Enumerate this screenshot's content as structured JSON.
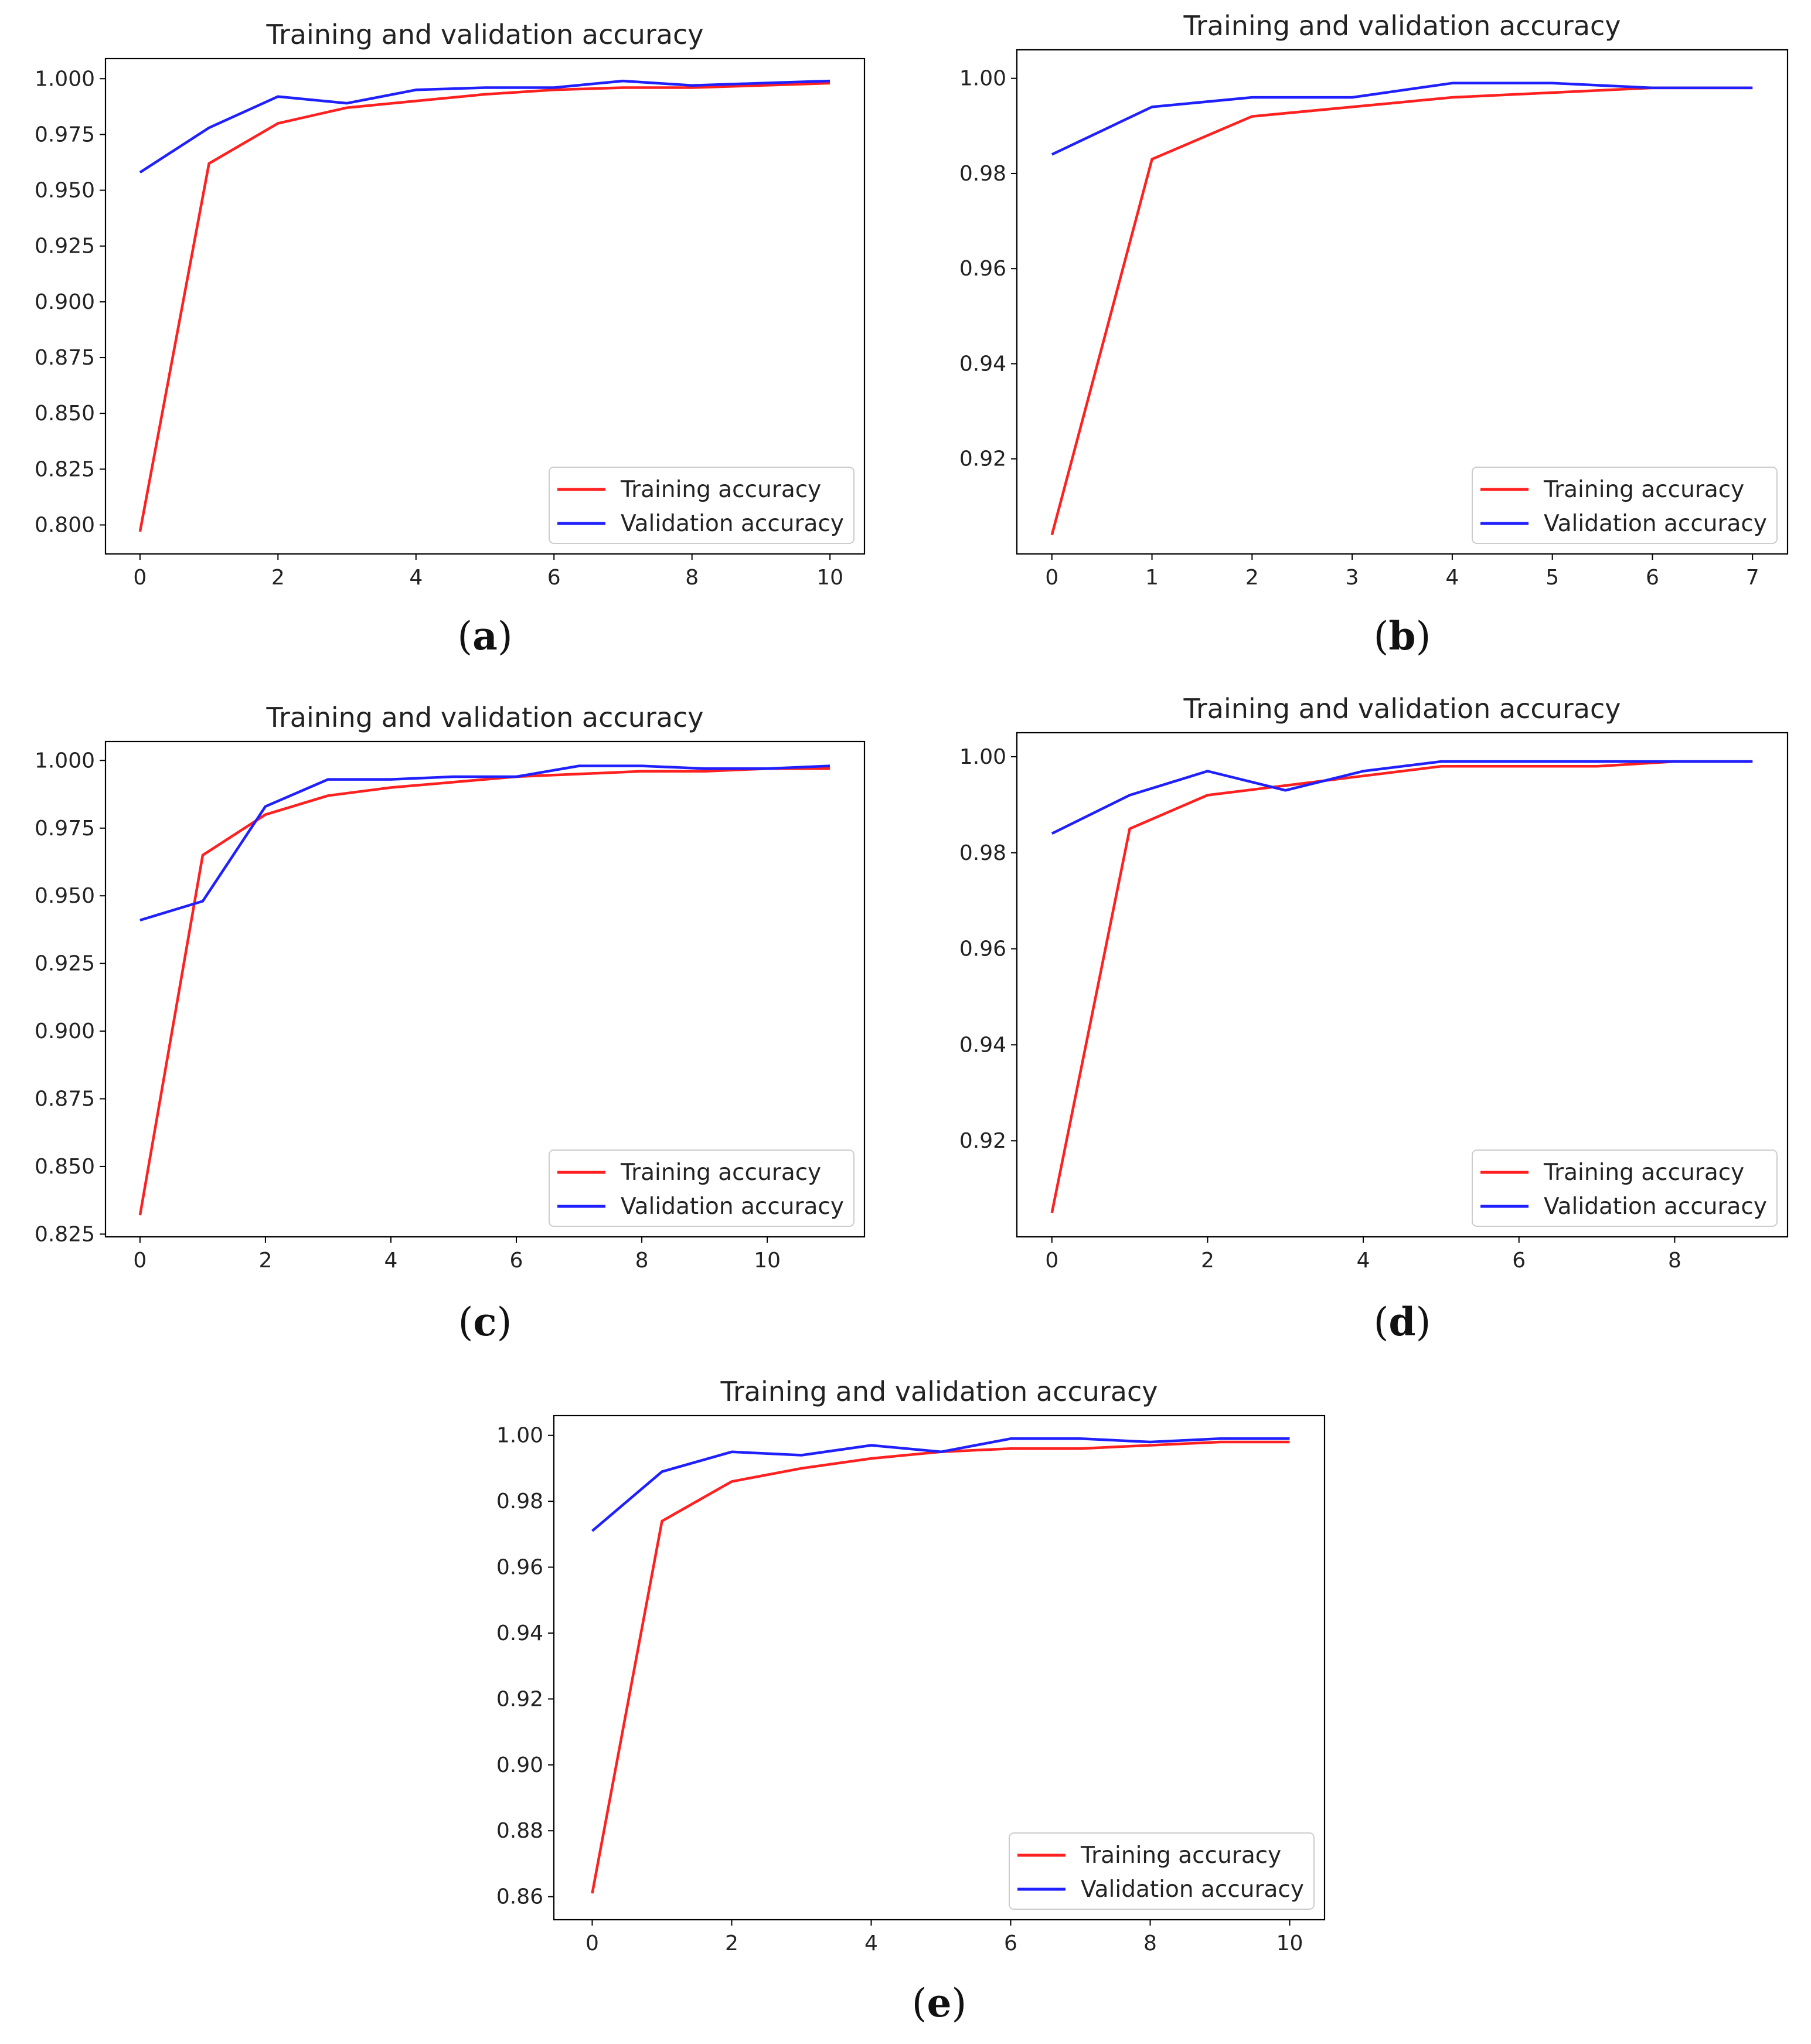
{
  "colors": {
    "training": "#ff2020",
    "validation": "#2020ff",
    "axis": "#000000"
  },
  "chart_data": [
    {
      "type": "line",
      "id": "a",
      "caption": "a",
      "title": "Training and validation accuracy",
      "xlabel": "",
      "ylabel": "",
      "xlim": [
        -0.5,
        10.5
      ],
      "ylim": [
        0.787,
        1.009
      ],
      "xticks": [
        0,
        2,
        4,
        6,
        8,
        10
      ],
      "xtick_labels": [
        "0",
        "2",
        "4",
        "6",
        "8",
        "10"
      ],
      "yticks": [
        0.8,
        0.825,
        0.85,
        0.875,
        0.9,
        0.925,
        0.95,
        0.975,
        1.0
      ],
      "ytick_labels": [
        "0.800",
        "0.825",
        "0.850",
        "0.875",
        "0.900",
        "0.925",
        "0.950",
        "0.975",
        "1.000"
      ],
      "legend_position": "lower-right",
      "x": [
        0,
        1,
        2,
        3,
        4,
        5,
        6,
        7,
        8,
        9,
        10
      ],
      "series": [
        {
          "name": "Training accuracy",
          "color_key": "training",
          "values": [
            0.797,
            0.962,
            0.98,
            0.987,
            0.99,
            0.993,
            0.995,
            0.996,
            0.996,
            0.997,
            0.998
          ]
        },
        {
          "name": "Validation accuracy",
          "color_key": "validation",
          "values": [
            0.958,
            0.978,
            0.992,
            0.989,
            0.995,
            0.996,
            0.996,
            0.999,
            0.997,
            0.998,
            0.999
          ]
        }
      ]
    },
    {
      "type": "line",
      "id": "b",
      "caption": "b",
      "title": "Training and validation accuracy",
      "xlabel": "",
      "ylabel": "",
      "xlim": [
        -0.35,
        7.35
      ],
      "ylim": [
        0.9,
        1.006
      ],
      "xticks": [
        0,
        1,
        2,
        3,
        4,
        5,
        6,
        7
      ],
      "xtick_labels": [
        "0",
        "1",
        "2",
        "3",
        "4",
        "5",
        "6",
        "7"
      ],
      "yticks": [
        0.92,
        0.94,
        0.96,
        0.98,
        1.0
      ],
      "ytick_labels": [
        "0.92",
        "0.94",
        "0.96",
        "0.98",
        "1.00"
      ],
      "legend_position": "lower-right",
      "x": [
        0,
        1,
        2,
        3,
        4,
        5,
        6,
        7
      ],
      "series": [
        {
          "name": "Training accuracy",
          "color_key": "training",
          "values": [
            0.904,
            0.983,
            0.992,
            0.994,
            0.996,
            0.997,
            0.998,
            0.998
          ]
        },
        {
          "name": "Validation accuracy",
          "color_key": "validation",
          "values": [
            0.984,
            0.994,
            0.996,
            0.996,
            0.999,
            0.999,
            0.998,
            0.998
          ]
        }
      ]
    },
    {
      "type": "line",
      "id": "c",
      "caption": "c",
      "title": "Training and validation accuracy",
      "xlabel": "",
      "ylabel": "",
      "xlim": [
        -0.55,
        11.55
      ],
      "ylim": [
        0.824,
        1.007
      ],
      "xticks": [
        0,
        2,
        4,
        6,
        8,
        10
      ],
      "xtick_labels": [
        "0",
        "2",
        "4",
        "6",
        "8",
        "10"
      ],
      "yticks": [
        0.825,
        0.85,
        0.875,
        0.9,
        0.925,
        0.95,
        0.975,
        1.0
      ],
      "ytick_labels": [
        "0.825",
        "0.850",
        "0.875",
        "0.900",
        "0.925",
        "0.950",
        "0.975",
        "1.000"
      ],
      "legend_position": "lower-right",
      "x": [
        0,
        1,
        2,
        3,
        4,
        5,
        6,
        7,
        8,
        9,
        10,
        11
      ],
      "series": [
        {
          "name": "Training accuracy",
          "color_key": "training",
          "values": [
            0.832,
            0.965,
            0.98,
            0.987,
            0.99,
            0.992,
            0.994,
            0.995,
            0.996,
            0.996,
            0.997,
            0.997
          ]
        },
        {
          "name": "Validation accuracy",
          "color_key": "validation",
          "values": [
            0.941,
            0.948,
            0.983,
            0.993,
            0.993,
            0.994,
            0.994,
            0.998,
            0.998,
            0.997,
            0.997,
            0.998
          ]
        }
      ]
    },
    {
      "type": "line",
      "id": "d",
      "caption": "d",
      "title": "Training and validation accuracy",
      "xlabel": "",
      "ylabel": "",
      "xlim": [
        -0.45,
        9.45
      ],
      "ylim": [
        0.9,
        1.005
      ],
      "xticks": [
        0,
        2,
        4,
        6,
        8
      ],
      "xtick_labels": [
        "0",
        "2",
        "4",
        "6",
        "8"
      ],
      "yticks": [
        0.92,
        0.94,
        0.96,
        0.98,
        1.0
      ],
      "ytick_labels": [
        "0.92",
        "0.94",
        "0.96",
        "0.98",
        "1.00"
      ],
      "legend_position": "lower-right",
      "x": [
        0,
        1,
        2,
        3,
        4,
        5,
        6,
        7,
        8,
        9
      ],
      "series": [
        {
          "name": "Training accuracy",
          "color_key": "training",
          "values": [
            0.905,
            0.985,
            0.992,
            0.994,
            0.996,
            0.998,
            0.998,
            0.998,
            0.999,
            0.999
          ]
        },
        {
          "name": "Validation accuracy",
          "color_key": "validation",
          "values": [
            0.984,
            0.992,
            0.997,
            0.993,
            0.997,
            0.999,
            0.999,
            0.999,
            0.999,
            0.999
          ]
        }
      ]
    },
    {
      "type": "line",
      "id": "e",
      "caption": "e",
      "title": "Training and validation accuracy",
      "xlabel": "",
      "ylabel": "",
      "xlim": [
        -0.55,
        10.5
      ],
      "ylim": [
        0.853,
        1.006
      ],
      "xticks": [
        0,
        2,
        4,
        6,
        8,
        10
      ],
      "xtick_labels": [
        "0",
        "2",
        "4",
        "6",
        "8",
        "10"
      ],
      "yticks": [
        0.86,
        0.88,
        0.9,
        0.92,
        0.94,
        0.96,
        0.98,
        1.0
      ],
      "ytick_labels": [
        "0.86",
        "0.88",
        "0.90",
        "0.92",
        "0.94",
        "0.96",
        "0.98",
        "1.00"
      ],
      "legend_position": "lower-right",
      "x": [
        0,
        1,
        2,
        3,
        4,
        5,
        6,
        7,
        8,
        9,
        10
      ],
      "series": [
        {
          "name": "Training accuracy",
          "color_key": "training",
          "values": [
            0.861,
            0.974,
            0.986,
            0.99,
            0.993,
            0.995,
            0.996,
            0.996,
            0.997,
            0.998,
            0.998
          ]
        },
        {
          "name": "Validation accuracy",
          "color_key": "validation",
          "values": [
            0.971,
            0.989,
            0.995,
            0.994,
            0.997,
            0.995,
            0.999,
            0.999,
            0.998,
            0.999,
            0.999
          ]
        }
      ]
    }
  ]
}
